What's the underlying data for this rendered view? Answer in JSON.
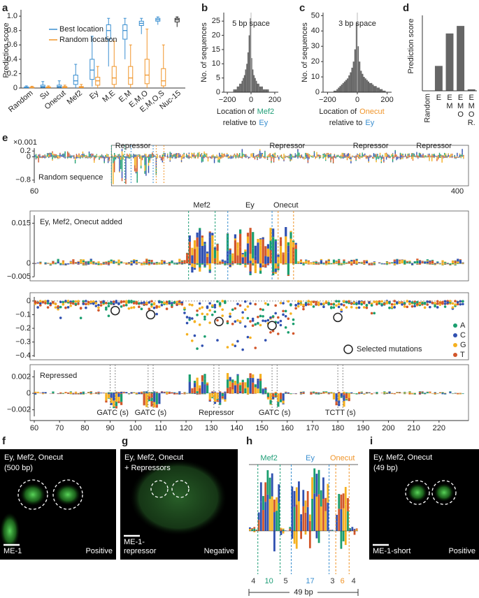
{
  "panel_labels": [
    "a",
    "b",
    "c",
    "d",
    "e",
    "f",
    "g",
    "h",
    "i"
  ],
  "chart_data": [
    {
      "type": "box",
      "ylabel": "Prediction score",
      "categories": [
        "Random",
        "Su",
        "Onecut",
        "Mef2",
        "Ey",
        "M,E",
        "E,M",
        "E,M,O",
        "E,M,O,S",
        "Nuc-15"
      ],
      "category_colors": [
        "#222222",
        "#d62728",
        "#f0952a",
        "#1f9e77",
        "#3a8fd0",
        "#1f9e77",
        "#3a8fd0",
        "#3a8fd0",
        "#3a8fd0",
        "#222222"
      ],
      "ylim": [
        0,
        1.05
      ],
      "yticks": [
        0,
        0.2,
        0.4,
        0.6,
        0.8,
        {
          "value": 1,
          "label": "1.0"
        }
      ],
      "legend": "upper left",
      "series": [
        {
          "name": "Best location",
          "color": "#3a8fd0",
          "box_colors": [
            "#3a8fd0",
            "#3a8fd0",
            "#3a8fd0",
            "#3a8fd0",
            "#3a8fd0",
            "#3a8fd0",
            "#3a8fd0",
            "#3a8fd0",
            "#3a8fd0",
            "#222222"
          ],
          "values": [
            [
              0,
              0.005,
              0.01,
              0.015,
              0.03
            ],
            [
              0,
              0.01,
              0.02,
              0.04,
              0.09
            ],
            [
              0,
              0.01,
              0.02,
              0.04,
              0.1
            ],
            [
              0,
              0.05,
              0.1,
              0.18,
              0.33
            ],
            [
              0.02,
              0.12,
              0.25,
              0.4,
              0.72
            ],
            [
              0.3,
              0.68,
              0.8,
              0.88,
              0.97
            ],
            [
              0.4,
              0.68,
              0.8,
              0.88,
              0.97
            ],
            [
              0.75,
              0.87,
              0.9,
              0.93,
              0.97
            ],
            [
              0.88,
              0.93,
              0.95,
              0.97,
              0.99
            ],
            [
              0.85,
              0.92,
              0.95,
              0.97,
              0.99
            ]
          ]
        },
        {
          "name": "Random location",
          "color": "#f0952a",
          "box_colors": [
            "#f0952a",
            "#f0952a",
            "#f0952a",
            "#f0952a",
            "#f0952a",
            "#f0952a",
            "#f0952a",
            "#f0952a",
            "#f0952a",
            "#f0952a"
          ],
          "values": [
            [
              0,
              0.003,
              0.008,
              0.012,
              0.025
            ],
            [
              0,
              0.005,
              0.01,
              0.015,
              0.03
            ],
            [
              0,
              0.005,
              0.01,
              0.02,
              0.04
            ],
            [
              0,
              0.005,
              0.01,
              0.02,
              0.05
            ],
            [
              0,
              0.04,
              0.1,
              0.15,
              0.3
            ],
            [
              0,
              0.05,
              0.14,
              0.3,
              0.65
            ],
            [
              0,
              0.05,
              0.14,
              0.3,
              0.6
            ],
            [
              0,
              0.06,
              0.18,
              0.4,
              0.82
            ],
            [
              0,
              0.03,
              0.1,
              0.27,
              0.6
            ],
            null
          ]
        }
      ]
    },
    {
      "type": "histogram",
      "title": "5 bp space",
      "ylabel": "No. of sequences",
      "xlabel": [
        [
          {
            "text": "Location of",
            "color": "#222222"
          },
          {
            "text": "Mef2",
            "color": "#1f9e77"
          }
        ],
        [
          {
            "text": "relative to",
            "color": "#222222"
          },
          {
            "text": "Ey",
            "color": "#3a8fd0"
          }
        ]
      ],
      "bins": [
        -200,
        -190,
        -180,
        -170,
        -160,
        -150,
        -140,
        -130,
        -120,
        -110,
        -100,
        -90,
        -80,
        -70,
        -60,
        -50,
        -40,
        -30,
        -20,
        -10,
        0,
        10,
        20,
        30,
        40,
        50,
        60,
        70,
        80,
        90,
        100,
        110,
        120,
        130,
        140,
        150,
        160,
        170,
        180,
        190,
        200
      ],
      "values": [
        0,
        0,
        0,
        0,
        0,
        1,
        1,
        1,
        2,
        2,
        3,
        3,
        4,
        5,
        6,
        8,
        10,
        14,
        20,
        26,
        12,
        8,
        6,
        5,
        4,
        3,
        3,
        2,
        2,
        2,
        1,
        1,
        1,
        1,
        1,
        0,
        0,
        0,
        0,
        0
      ],
      "color": "#666666",
      "xlim": [
        -230,
        230
      ],
      "xticks": [
        {
          "value": -200,
          "label": "−200"
        },
        0,
        200
      ],
      "ylim": [
        0,
        28
      ],
      "yticks": [
        0,
        5,
        10,
        15,
        20,
        25
      ]
    },
    {
      "type": "histogram",
      "title": "3 bp space",
      "ylabel": "No. of sequences",
      "xlabel": [
        [
          {
            "text": "Location of",
            "color": "#222222"
          },
          {
            "text": "Onecut",
            "color": "#f0952a"
          }
        ],
        [
          {
            "text": "relative to",
            "color": "#222222"
          },
          {
            "text": "Ey",
            "color": "#3a8fd0"
          }
        ]
      ],
      "bins": [
        -200,
        -190,
        -180,
        -170,
        -160,
        -150,
        -140,
        -130,
        -120,
        -110,
        -100,
        -90,
        -80,
        -70,
        -60,
        -50,
        -40,
        -30,
        -20,
        -10,
        0,
        10,
        20,
        30,
        40,
        50,
        60,
        70,
        80,
        90,
        100,
        110,
        120,
        130,
        140,
        150,
        160,
        170,
        180,
        190,
        200
      ],
      "values": [
        0,
        0,
        0,
        0,
        1,
        1,
        2,
        3,
        4,
        5,
        6,
        7,
        8,
        9,
        11,
        13,
        16,
        20,
        28,
        45,
        30,
        20,
        14,
        12,
        10,
        9,
        8,
        7,
        6,
        6,
        5,
        4,
        4,
        3,
        3,
        2,
        2,
        1,
        1,
        0
      ],
      "color": "#666666",
      "xlim": [
        -230,
        230
      ],
      "xticks": [
        {
          "value": -200,
          "label": "−200"
        },
        0,
        200
      ],
      "ylim": [
        0,
        52
      ],
      "yticks": [
        0,
        10,
        20,
        30,
        40,
        50
      ]
    },
    {
      "type": "bar",
      "ylabel": "Prediction score",
      "categories": [
        [
          {
            "text": "Random",
            "color": "#222222"
          }
        ],
        [
          {
            "text": "E",
            "color": "#3a8fd0"
          }
        ],
        [
          {
            "text": "E",
            "color": "#3a8fd0"
          },
          {
            "text": "M",
            "color": "#1f9e77"
          }
        ],
        [
          {
            "text": "E",
            "color": "#3a8fd0"
          },
          {
            "text": "M",
            "color": "#1f9e77"
          },
          {
            "text": "O",
            "color": "#f0952a"
          }
        ],
        [
          {
            "text": "E",
            "color": "#3a8fd0"
          },
          {
            "text": "M",
            "color": "#1f9e77"
          },
          {
            "text": "O",
            "color": "#f0952a"
          },
          {
            "text": "R.",
            "color": "#222222"
          }
        ]
      ],
      "values": [
        0,
        0.33,
        0.76,
        0.86,
        0.02
      ],
      "color": "#666666",
      "ylim": [
        0,
        1
      ]
    }
  ],
  "logo_panel": {
    "xlim": [
      60,
      230
    ],
    "xticks": [
      60,
      70,
      80,
      90,
      100,
      110,
      120,
      130,
      140,
      150,
      160,
      170,
      180,
      190,
      200,
      210,
      220
    ],
    "nucleotides": [
      {
        "text": "A",
        "color": "#1a9e6e"
      },
      {
        "text": "C",
        "color": "#3050b0"
      },
      {
        "text": "G",
        "color": "#f5b120"
      },
      {
        "text": "T",
        "color": "#d2562a"
      }
    ],
    "top": {
      "label": "Random sequence",
      "scale": "×0.001",
      "xlim": [
        60,
        400
      ],
      "xticks": [
        60,
        400
      ],
      "ylim": [
        -0.9,
        0.3
      ],
      "yticks": [
        0.2,
        0,
        {
          "value": -0.8,
          "label": "−0.8"
        }
      ],
      "repressor_label": "Repressor",
      "repressor_positions": [
        138,
        260,
        326,
        376
      ]
    },
    "added": {
      "label": "Ey, Mef2, Onecut added",
      "ylim": [
        -0.0065,
        0.018
      ],
      "yticks": [
        0.015,
        0,
        {
          "value": -0.005,
          "label": "−0.005"
        }
      ],
      "motifs": [
        {
          "name": "Mef2",
          "color": "#1f9e77",
          "start": 121,
          "end": 131.5
        },
        {
          "name": "Ey",
          "color": "#3a8fd0",
          "start": 136.5,
          "end": 154
        },
        {
          "name": "Onecut",
          "color": "#f0952a",
          "start": 156.4,
          "end": 162.5
        }
      ]
    },
    "mutations": {
      "ylim": [
        -0.43,
        0.03
      ],
      "yticks": [
        0,
        {
          "value": -0.1,
          "label": "−0.1"
        },
        {
          "value": -0.2,
          "label": "−0.2"
        },
        {
          "value": -0.3,
          "label": "−0.3"
        },
        {
          "value": -0.4,
          "label": "−0.4"
        }
      ],
      "selected": {
        "name": "Selected mutations",
        "x": [
          92,
          106,
          133,
          154,
          180
        ],
        "values": [
          -0.07,
          -0.1,
          -0.15,
          -0.18,
          -0.12
        ]
      }
    },
    "repressed": {
      "label": "Repressed",
      "ylim": [
        -0.0028,
        0.0028
      ],
      "yticks": [
        0.002,
        0,
        {
          "value": -0.002,
          "label": "−0.002"
        }
      ],
      "sites": [
        {
          "label": "GATC (s)",
          "start": 90,
          "end": 92
        },
        {
          "label": "GATC (s)",
          "start": 105,
          "end": 107
        },
        {
          "label": "Repressor",
          "start": 131,
          "end": 133
        },
        {
          "label": "GATC (s)",
          "start": 154,
          "end": 156
        },
        {
          "label": "TCTT (s)",
          "start": 180,
          "end": 182
        }
      ]
    }
  },
  "images": [
    {
      "lines": [
        "Ey, Mef2, Onecut",
        "(500 bp)"
      ],
      "name": [
        "ME-1"
      ],
      "result": "Positive"
    },
    {
      "lines": [
        "Ey, Mef2, Onecut",
        "+ Repressors"
      ],
      "name": [
        "ME-1-",
        "repressor"
      ],
      "result": "Negative"
    },
    {
      "lines": [
        "Ey, Mef2, Onecut",
        "(49 bp)"
      ],
      "name": [
        "ME-1-short"
      ],
      "result": "Positive"
    }
  ],
  "motif_panel": {
    "total": "49 bp",
    "segments": [
      {
        "length": 4,
        "color": "#333333"
      },
      {
        "length": 10,
        "color": "#1f9e77",
        "motif": "Mef2"
      },
      {
        "length": 5,
        "color": "#333333"
      },
      {
        "length": 17,
        "color": "#3a8fd0",
        "motif": "Ey"
      },
      {
        "length": 3,
        "color": "#333333"
      },
      {
        "length": 6,
        "color": "#f0952a",
        "motif": "Onecut"
      },
      {
        "length": 4,
        "color": "#333333"
      }
    ]
  }
}
